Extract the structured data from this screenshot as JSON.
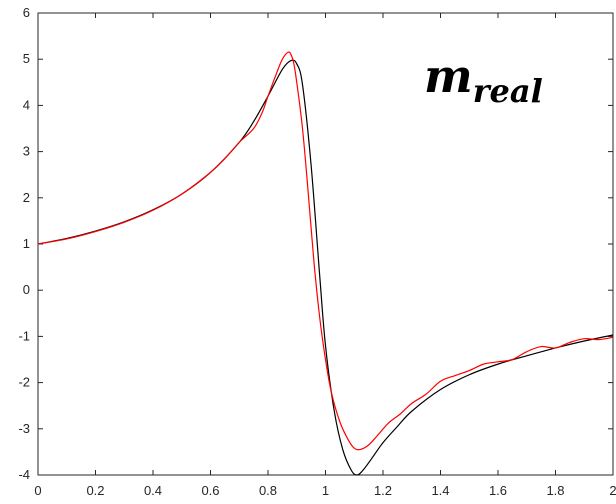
{
  "chart_data": {
    "type": "line",
    "title_symbol": "m",
    "title_subscript": "real",
    "xlabel": "",
    "ylabel": "",
    "xlim": [
      0,
      2
    ],
    "ylim": [
      -4,
      6
    ],
    "xticks": [
      0,
      0.2,
      0.4,
      0.6,
      0.8,
      1,
      1.2,
      1.4,
      1.6,
      1.8,
      2
    ],
    "xtick_labels": [
      "0",
      "0.2",
      "0.4",
      "0.6",
      "0.8",
      "1",
      "1.2",
      "1.4",
      "1.6",
      "1.8",
      "2"
    ],
    "yticks": [
      -4,
      -3,
      -2,
      -1,
      0,
      1,
      2,
      3,
      4,
      5,
      6
    ],
    "ytick_labels": [
      "-4",
      "-3",
      "-2",
      "-1",
      "0",
      "1",
      "2",
      "3",
      "4",
      "5",
      "6"
    ],
    "grid": false,
    "series": [
      {
        "color": "#000000",
        "x": [
          0,
          0.1,
          0.2,
          0.3,
          0.4,
          0.5,
          0.6,
          0.7,
          0.75,
          0.8,
          0.85,
          0.88,
          0.9,
          0.92,
          0.95,
          0.98,
          1.0,
          1.03,
          1.06,
          1.09,
          1.11,
          1.13,
          1.16,
          1.2,
          1.25,
          1.3,
          1.4,
          1.5,
          1.6,
          1.7,
          1.8,
          1.9,
          2.0
        ],
        "y": [
          1.0,
          1.12,
          1.28,
          1.48,
          1.74,
          2.08,
          2.55,
          3.2,
          3.65,
          4.2,
          4.78,
          4.97,
          4.9,
          4.45,
          2.7,
          0.3,
          -1.2,
          -2.6,
          -3.45,
          -3.9,
          -4.0,
          -3.9,
          -3.65,
          -3.3,
          -2.95,
          -2.62,
          -2.15,
          -1.83,
          -1.6,
          -1.42,
          -1.25,
          -1.1,
          -0.97
        ]
      },
      {
        "color": "#ff0000",
        "x": [
          0,
          0.1,
          0.2,
          0.3,
          0.4,
          0.5,
          0.6,
          0.65,
          0.7,
          0.75,
          0.78,
          0.8,
          0.83,
          0.85,
          0.87,
          0.88,
          0.89,
          0.9,
          0.92,
          0.94,
          0.96,
          0.98,
          1.0,
          1.02,
          1.05,
          1.08,
          1.1,
          1.12,
          1.15,
          1.18,
          1.22,
          1.26,
          1.3,
          1.35,
          1.4,
          1.45,
          1.5,
          1.55,
          1.6,
          1.65,
          1.7,
          1.75,
          1.8,
          1.85,
          1.9,
          1.95,
          2.0
        ],
        "y": [
          1.0,
          1.11,
          1.27,
          1.47,
          1.73,
          2.08,
          2.55,
          2.85,
          3.2,
          3.5,
          3.85,
          4.2,
          4.7,
          5.0,
          5.15,
          5.1,
          4.9,
          4.5,
          3.5,
          2.1,
          0.6,
          -0.6,
          -1.5,
          -2.2,
          -2.85,
          -3.25,
          -3.42,
          -3.45,
          -3.35,
          -3.15,
          -2.87,
          -2.68,
          -2.45,
          -2.25,
          -1.97,
          -1.85,
          -1.74,
          -1.6,
          -1.55,
          -1.5,
          -1.33,
          -1.22,
          -1.25,
          -1.13,
          -1.05,
          -1.07,
          -1.02
        ]
      }
    ]
  }
}
